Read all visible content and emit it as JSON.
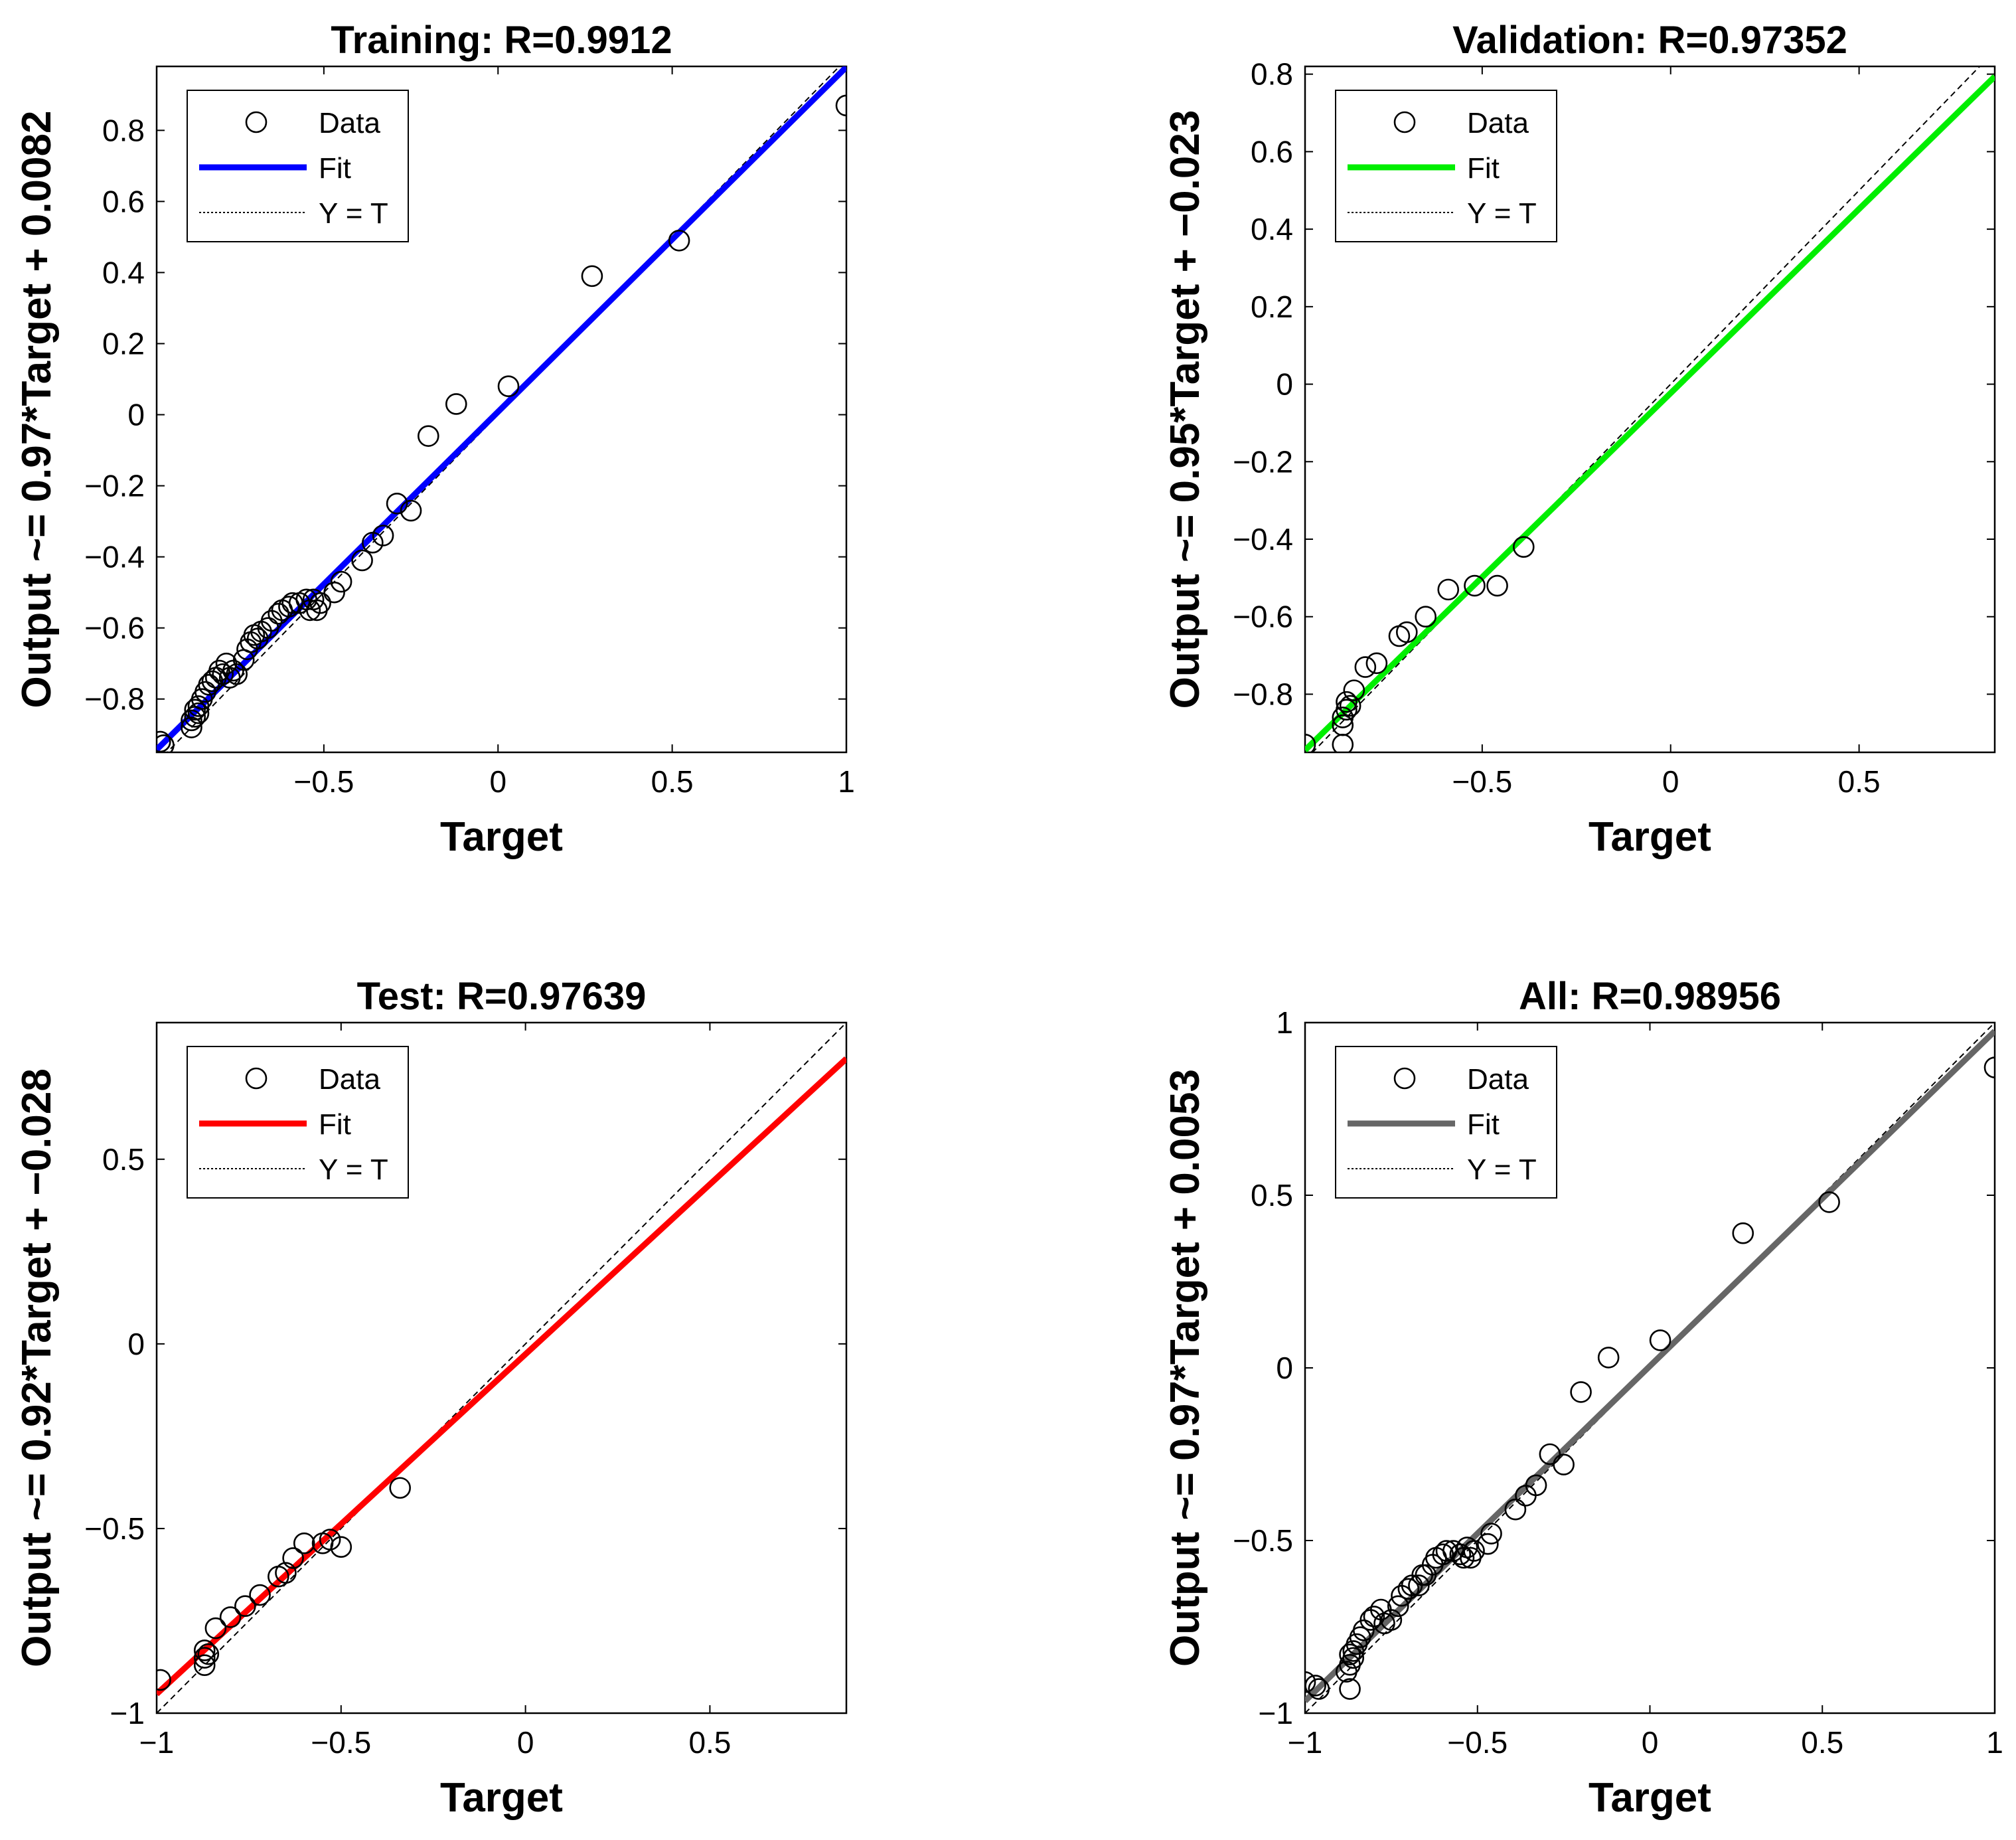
{
  "colors": {
    "training_fit": "#0000ff",
    "validation_fit": "#00ee00",
    "test_fit": "#ff0000",
    "all_fit": "#666666",
    "ideal": "#000000",
    "marker": "#000000"
  },
  "legend": {
    "data": "Data",
    "fit": "Fit",
    "ideal": "Y = T"
  },
  "chart_data": [
    {
      "type": "scatter",
      "title": "Training: R=0.9912",
      "xlabel": "Target",
      "ylabel": "Output ~= 0.97*Target + 0.0082",
      "xlim": [
        -0.98,
        1.0
      ],
      "ylim": [
        -0.95,
        0.98
      ],
      "xticks": [
        -0.5,
        0,
        0.5,
        1
      ],
      "xtick_labels": [
        "−0.5",
        "0",
        "0.5",
        "1"
      ],
      "yticks": [
        -0.8,
        -0.6,
        -0.4,
        -0.2,
        0,
        0.2,
        0.4,
        0.6,
        0.8
      ],
      "ytick_labels": [
        "−0.8",
        "−0.6",
        "−0.4",
        "−0.2",
        "0",
        "0.2",
        "0.4",
        "0.6",
        "0.8"
      ],
      "fit": {
        "slope": 0.97,
        "intercept": 0.0082,
        "color_key": "training_fit"
      },
      "points": [
        [
          -0.97,
          -0.92
        ],
        [
          -0.96,
          -0.93
        ],
        [
          -0.88,
          -0.88
        ],
        [
          -0.88,
          -0.86
        ],
        [
          -0.87,
          -0.85
        ],
        [
          -0.87,
          -0.83
        ],
        [
          -0.86,
          -0.84
        ],
        [
          -0.86,
          -0.82
        ],
        [
          -0.85,
          -0.8
        ],
        [
          -0.84,
          -0.78
        ],
        [
          -0.83,
          -0.76
        ],
        [
          -0.82,
          -0.75
        ],
        [
          -0.81,
          -0.74
        ],
        [
          -0.8,
          -0.72
        ],
        [
          -0.79,
          -0.73
        ],
        [
          -0.78,
          -0.7
        ],
        [
          -0.77,
          -0.74
        ],
        [
          -0.76,
          -0.72
        ],
        [
          -0.75,
          -0.73
        ],
        [
          -0.73,
          -0.69
        ],
        [
          -0.72,
          -0.66
        ],
        [
          -0.71,
          -0.64
        ],
        [
          -0.7,
          -0.62
        ],
        [
          -0.69,
          -0.63
        ],
        [
          -0.68,
          -0.61
        ],
        [
          -0.66,
          -0.6
        ],
        [
          -0.65,
          -0.58
        ],
        [
          -0.63,
          -0.56
        ],
        [
          -0.62,
          -0.55
        ],
        [
          -0.6,
          -0.54
        ],
        [
          -0.59,
          -0.53
        ],
        [
          -0.57,
          -0.53
        ],
        [
          -0.55,
          -0.52
        ],
        [
          -0.54,
          -0.55
        ],
        [
          -0.53,
          -0.52
        ],
        [
          -0.52,
          -0.55
        ],
        [
          -0.51,
          -0.53
        ],
        [
          -0.47,
          -0.5
        ],
        [
          -0.45,
          -0.47
        ],
        [
          -0.39,
          -0.41
        ],
        [
          -0.36,
          -0.36
        ],
        [
          -0.33,
          -0.34
        ],
        [
          -0.29,
          -0.25
        ],
        [
          -0.25,
          -0.27
        ],
        [
          -0.2,
          -0.06
        ],
        [
          -0.12,
          0.03
        ],
        [
          0.03,
          0.08
        ],
        [
          0.27,
          0.39
        ],
        [
          0.52,
          0.49
        ],
        [
          1.0,
          0.87
        ]
      ]
    },
    {
      "type": "scatter",
      "title": "Validation: R=0.97352",
      "xlabel": "Target",
      "ylabel": "Output ~= 0.95*Target + −0.023",
      "xlim": [
        -0.97,
        0.86
      ],
      "ylim": [
        -0.95,
        0.82
      ],
      "xticks": [
        -0.5,
        0,
        0.5
      ],
      "xtick_labels": [
        "−0.5",
        "0",
        "0.5"
      ],
      "yticks": [
        -0.8,
        -0.6,
        -0.4,
        -0.2,
        0,
        0.2,
        0.4,
        0.6,
        0.8
      ],
      "ytick_labels": [
        "−0.8",
        "−0.6",
        "−0.4",
        "−0.2",
        "0",
        "0.2",
        "0.4",
        "0.6",
        "0.8"
      ],
      "fit": {
        "slope": 0.95,
        "intercept": -0.023,
        "color_key": "validation_fit"
      },
      "points": [
        [
          -0.97,
          -0.93
        ],
        [
          -0.87,
          -0.93
        ],
        [
          -0.87,
          -0.88
        ],
        [
          -0.87,
          -0.86
        ],
        [
          -0.86,
          -0.84
        ],
        [
          -0.86,
          -0.82
        ],
        [
          -0.85,
          -0.83
        ],
        [
          -0.84,
          -0.79
        ],
        [
          -0.81,
          -0.73
        ],
        [
          -0.78,
          -0.72
        ],
        [
          -0.72,
          -0.65
        ],
        [
          -0.7,
          -0.64
        ],
        [
          -0.65,
          -0.6
        ],
        [
          -0.59,
          -0.53
        ],
        [
          -0.52,
          -0.52
        ],
        [
          -0.46,
          -0.52
        ],
        [
          -0.39,
          -0.42
        ]
      ]
    },
    {
      "type": "scatter",
      "title": "Test: R=0.97639",
      "xlabel": "Target",
      "ylabel": "Output ~= 0.92*Target + −0.028",
      "xlim": [
        -1.0,
        0.87
      ],
      "ylim": [
        -1.0,
        0.87
      ],
      "xticks": [
        -1,
        -0.5,
        0,
        0.5
      ],
      "xtick_labels": [
        "−1",
        "−0.5",
        "0",
        "0.5"
      ],
      "yticks": [
        -1,
        -0.5,
        0,
        0.5
      ],
      "ytick_labels": [
        "−1",
        "−0.5",
        "0",
        "0.5"
      ],
      "fit": {
        "slope": 0.92,
        "intercept": -0.028,
        "color_key": "test_fit"
      },
      "points": [
        [
          -0.99,
          -0.91
        ],
        [
          -0.87,
          -0.87
        ],
        [
          -0.87,
          -0.85
        ],
        [
          -0.87,
          -0.83
        ],
        [
          -0.86,
          -0.84
        ],
        [
          -0.84,
          -0.77
        ],
        [
          -0.8,
          -0.74
        ],
        [
          -0.76,
          -0.71
        ],
        [
          -0.72,
          -0.68
        ],
        [
          -0.67,
          -0.63
        ],
        [
          -0.65,
          -0.62
        ],
        [
          -0.63,
          -0.58
        ],
        [
          -0.6,
          -0.54
        ],
        [
          -0.55,
          -0.54
        ],
        [
          -0.53,
          -0.53
        ],
        [
          -0.5,
          -0.55
        ],
        [
          -0.34,
          -0.39
        ]
      ]
    },
    {
      "type": "scatter",
      "title": "All: R=0.98956",
      "xlabel": "Target",
      "ylabel": "Output ~= 0.97*Target + 0.0053",
      "xlim": [
        -1.0,
        1.0
      ],
      "ylim": [
        -1.0,
        1.0
      ],
      "xticks": [
        -1,
        -0.5,
        0,
        0.5,
        1
      ],
      "xtick_labels": [
        "−1",
        "−0.5",
        "0",
        "0.5",
        "1"
      ],
      "yticks": [
        -1,
        -0.5,
        0,
        0.5,
        1
      ],
      "ytick_labels": [
        "−1",
        "−0.5",
        "0",
        "0.5",
        "1"
      ],
      "fit": {
        "slope": 0.97,
        "intercept": 0.0053,
        "color_key": "all_fit"
      },
      "points": [
        [
          -1.0,
          -0.91
        ],
        [
          -0.97,
          -0.92
        ],
        [
          -0.96,
          -0.93
        ],
        [
          -0.87,
          -0.93
        ],
        [
          -0.88,
          -0.88
        ],
        [
          -0.87,
          -0.86
        ],
        [
          -0.87,
          -0.83
        ],
        [
          -0.86,
          -0.84
        ],
        [
          -0.86,
          -0.82
        ],
        [
          -0.85,
          -0.8
        ],
        [
          -0.84,
          -0.78
        ],
        [
          -0.83,
          -0.76
        ],
        [
          -0.81,
          -0.73
        ],
        [
          -0.8,
          -0.72
        ],
        [
          -0.78,
          -0.7
        ],
        [
          -0.77,
          -0.74
        ],
        [
          -0.75,
          -0.73
        ],
        [
          -0.73,
          -0.69
        ],
        [
          -0.72,
          -0.66
        ],
        [
          -0.7,
          -0.64
        ],
        [
          -0.69,
          -0.63
        ],
        [
          -0.67,
          -0.63
        ],
        [
          -0.66,
          -0.6
        ],
        [
          -0.65,
          -0.6
        ],
        [
          -0.63,
          -0.57
        ],
        [
          -0.62,
          -0.55
        ],
        [
          -0.6,
          -0.54
        ],
        [
          -0.59,
          -0.53
        ],
        [
          -0.57,
          -0.53
        ],
        [
          -0.55,
          -0.54
        ],
        [
          -0.54,
          -0.55
        ],
        [
          -0.53,
          -0.52
        ],
        [
          -0.52,
          -0.55
        ],
        [
          -0.51,
          -0.53
        ],
        [
          -0.47,
          -0.51
        ],
        [
          -0.46,
          -0.48
        ],
        [
          -0.39,
          -0.41
        ],
        [
          -0.36,
          -0.37
        ],
        [
          -0.33,
          -0.34
        ],
        [
          -0.29,
          -0.25
        ],
        [
          -0.25,
          -0.28
        ],
        [
          -0.2,
          -0.07
        ],
        [
          -0.12,
          0.03
        ],
        [
          0.03,
          0.08
        ],
        [
          0.27,
          0.39
        ],
        [
          0.52,
          0.48
        ],
        [
          1.0,
          0.87
        ]
      ]
    }
  ]
}
